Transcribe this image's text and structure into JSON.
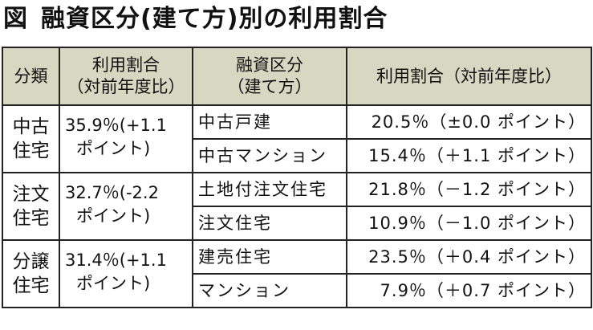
{
  "title": {
    "figure_label": "図",
    "text": "融資区分(建て方)別の利用割合"
  },
  "table": {
    "headers": {
      "category": "分類",
      "share_line1": "利用割合",
      "share_line2": "（対前年度比）",
      "subtype_line1": "融資区分",
      "subtype_line2": "（建て方）",
      "rate": "利用割合（対前年度比）"
    },
    "groups": [
      {
        "category_line1": "中古",
        "category_line2": "住宅",
        "share_line1": "35.9％(+1.1",
        "share_line2": "ポイント)",
        "rows": [
          {
            "subtype": "中古戸建",
            "rate": "20.5％（±0.0 ポイント）"
          },
          {
            "subtype": "中古マンション",
            "rate": "15.4％（＋1.1 ポイント）"
          }
        ]
      },
      {
        "category_line1": "注文",
        "category_line2": "住宅",
        "share_line1": "32.7％(-2.2",
        "share_line2": "ポイント)",
        "rows": [
          {
            "subtype": "土地付注文住宅",
            "rate": "21.8％（－1.2 ポイント）"
          },
          {
            "subtype": "注文住宅",
            "rate": "10.9％（－1.0 ポイント）"
          }
        ]
      },
      {
        "category_line1": "分譲",
        "category_line2": "住宅",
        "share_line1": "31.4％(+1.1",
        "share_line2": "ポイント)",
        "rows": [
          {
            "subtype": "建売住宅",
            "rate": "23.5％（＋0.4 ポイント）"
          },
          {
            "subtype": "マンション",
            "rate": "7.9％（＋0.7 ポイント）"
          }
        ]
      }
    ]
  },
  "colors": {
    "header_background": "#d7d8c2",
    "border": "#222222",
    "text": "#111111"
  }
}
